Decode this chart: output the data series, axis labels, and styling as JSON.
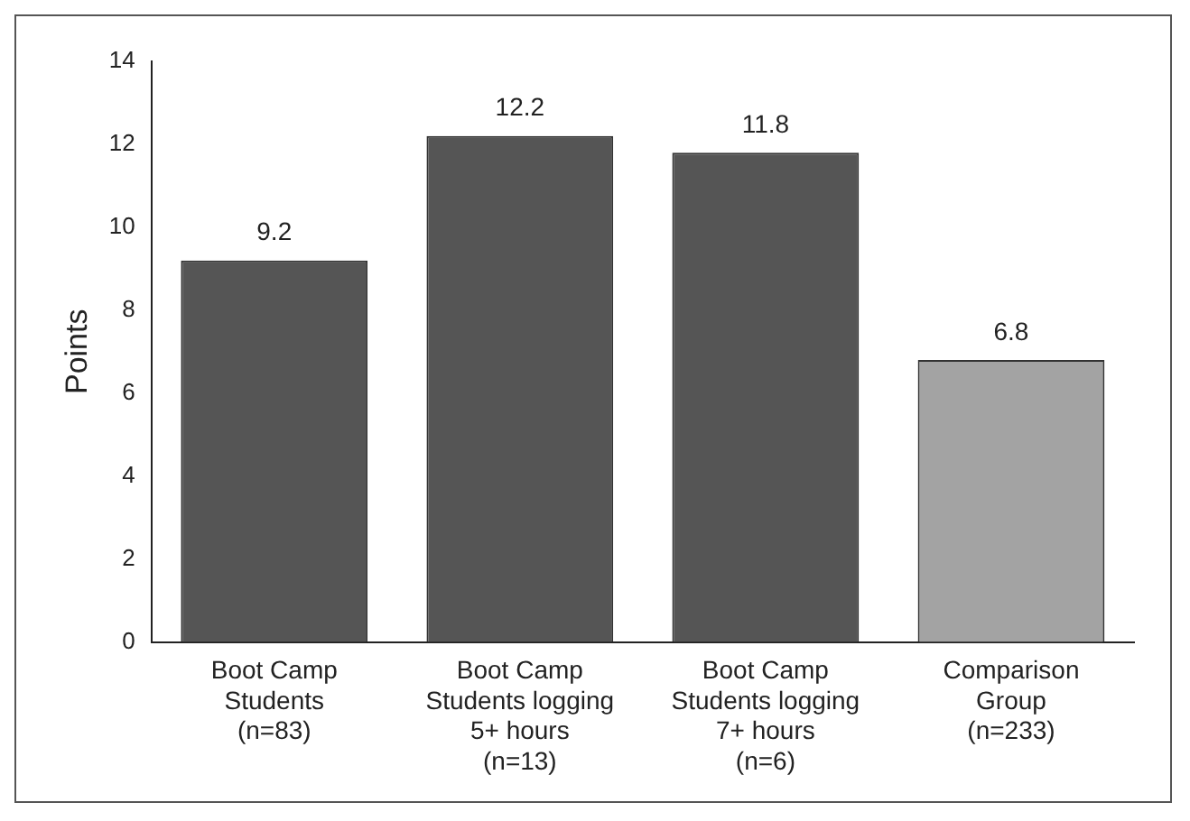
{
  "chart_data": {
    "type": "bar",
    "ylabel": "Points",
    "categories": [
      "Boot Camp\nStudents\n(n=83)",
      "Boot Camp\nStudents logging\n5+ hours\n(n=13)",
      "Boot Camp\nStudents logging\n7+ hours\n(n=6)",
      "Comparison\nGroup\n(n=233)"
    ],
    "values": [
      9.2,
      12.2,
      11.8,
      6.8
    ],
    "colors": [
      "#555555",
      "#555555",
      "#555555",
      "#a3a3a3"
    ],
    "ylim": [
      0,
      14
    ],
    "yticks": [
      0,
      2,
      4,
      6,
      8,
      10,
      12,
      14
    ],
    "grid": false,
    "legend": false,
    "data_labels": true
  }
}
